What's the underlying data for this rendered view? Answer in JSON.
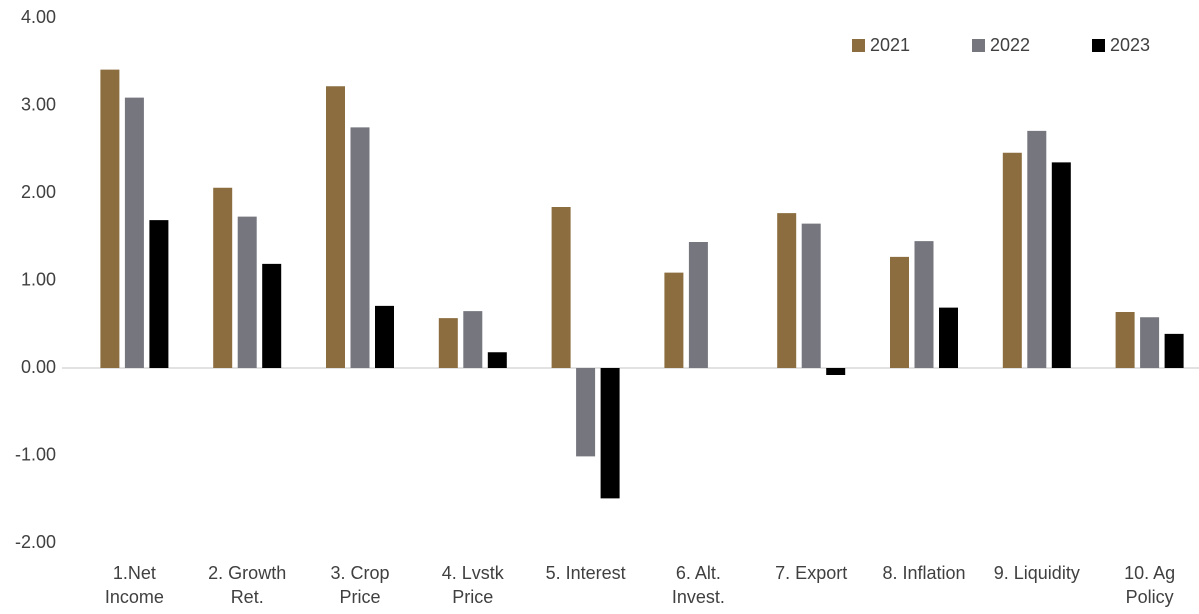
{
  "chart_data": {
    "type": "bar",
    "categories": [
      [
        "1.Net",
        "Income"
      ],
      [
        "2. Growth",
        "Ret."
      ],
      [
        "3. Crop",
        "Price"
      ],
      [
        "4. Lvstk",
        "Price"
      ],
      [
        "5. Interest"
      ],
      [
        "6. Alt.",
        "Invest."
      ],
      [
        "7. Export"
      ],
      [
        "8. Inflation"
      ],
      [
        "9. Liquidity"
      ],
      [
        "10. Ag",
        "Policy"
      ]
    ],
    "series": [
      {
        "name": "2021",
        "color": "#8b6d3f",
        "values": [
          3.41,
          2.06,
          3.22,
          0.57,
          1.84,
          1.09,
          1.77,
          1.27,
          2.46,
          0.64
        ]
      },
      {
        "name": "2022",
        "color": "#75767e",
        "values": [
          3.09,
          1.73,
          2.75,
          0.65,
          -1.01,
          1.44,
          1.65,
          1.45,
          2.71,
          0.58
        ]
      },
      {
        "name": "2023",
        "color": "#000000",
        "values": [
          1.69,
          1.19,
          0.71,
          0.18,
          -1.49,
          null,
          -0.08,
          0.69,
          2.35,
          0.39
        ]
      }
    ],
    "ylim": [
      -2,
      4
    ],
    "yticks": [
      {
        "value": -2,
        "label": "-2.00"
      },
      {
        "value": -1,
        "label": "-1.00"
      },
      {
        "value": 0,
        "label": "0.00"
      },
      {
        "value": 1,
        "label": "1.00"
      },
      {
        "value": 2,
        "label": "2.00"
      },
      {
        "value": 3,
        "label": "3.00"
      },
      {
        "value": 4,
        "label": "4.00"
      }
    ],
    "legend": "top-right"
  }
}
